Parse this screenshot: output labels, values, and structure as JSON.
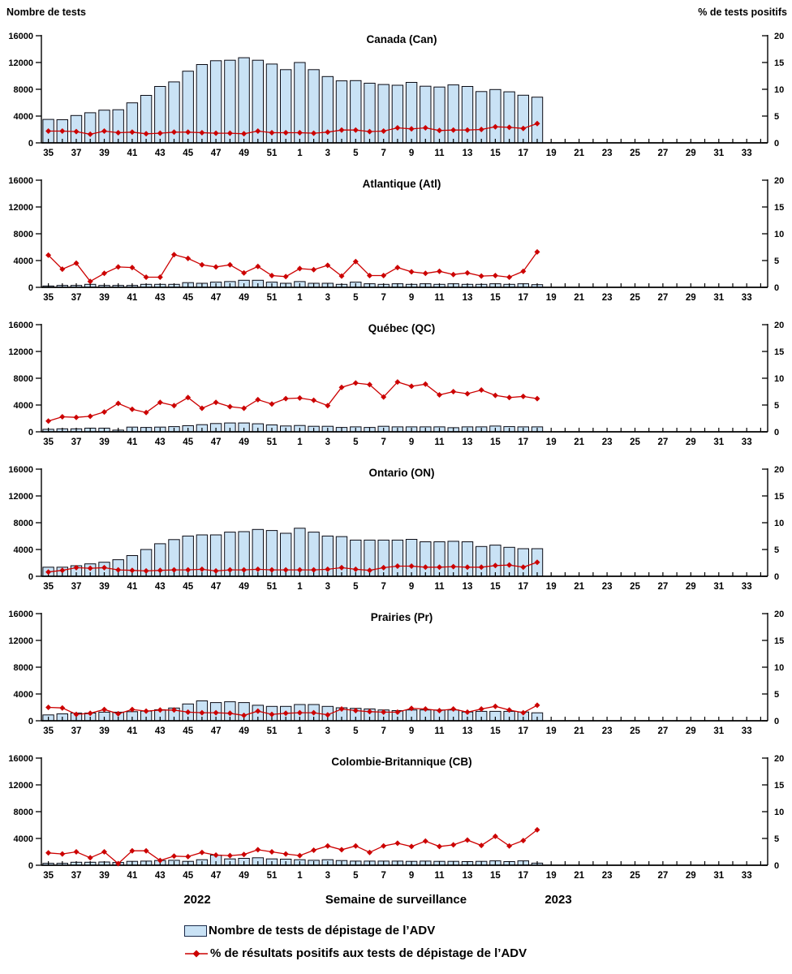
{
  "header": {
    "left_axis_title": "Nombre de tests",
    "right_axis_title": "% de tests positifs"
  },
  "footer": {
    "year_left": "2022",
    "xlabel": "Semaine de surveillance",
    "year_right": "2023"
  },
  "legend": {
    "bars_label": "Nombre de tests de dépistage de l’ADV",
    "line_label": "% de résultats positifs aux tests de dépistage de l’ADV"
  },
  "colors": {
    "bar_fill": "#C9E2F5",
    "bar_border": "#0b0b14",
    "line": "#CC0000",
    "axis": "#000000"
  },
  "chart_data": {
    "type": "bar+line",
    "categories": [
      "35",
      "36",
      "37",
      "38",
      "39",
      "40",
      "41",
      "42",
      "43",
      "44",
      "45",
      "46",
      "47",
      "48",
      "49",
      "50",
      "51",
      "52",
      "1",
      "2",
      "3",
      "4",
      "5",
      "6",
      "7",
      "8",
      "9",
      "10",
      "11",
      "12",
      "13",
      "14",
      "15",
      "16",
      "17",
      "18",
      "19",
      "20",
      "21",
      "22",
      "23",
      "24",
      "25",
      "26",
      "27",
      "28",
      "29",
      "30",
      "31",
      "32",
      "33",
      "34"
    ],
    "x_labeled_ticks": [
      "35",
      "37",
      "39",
      "41",
      "43",
      "45",
      "47",
      "49",
      "51",
      "1",
      "3",
      "5",
      "7",
      "9",
      "11",
      "13",
      "15",
      "17",
      "19",
      "21",
      "23",
      "25",
      "27",
      "29",
      "31",
      "33"
    ],
    "ylim_left": [
      0,
      16000
    ],
    "ylim_right": [
      0,
      20
    ],
    "yticks_left": [
      0,
      4000,
      8000,
      12000,
      16000
    ],
    "yticks_right": [
      0,
      5,
      10,
      15,
      20
    ],
    "bars_series_name": "Nombre de tests de dépistage de l’ADV",
    "line_series_name": "% de résultats positifs aux tests de dépistage de l’ADV",
    "panels": [
      {
        "id": "can",
        "title": "Canada (Can)",
        "tests": [
          3500,
          3460,
          4080,
          4500,
          4880,
          4950,
          5980,
          7090,
          8420,
          9100,
          10700,
          11700,
          12270,
          12340,
          12720,
          12340,
          11770,
          10930,
          12000,
          10930,
          9900,
          9260,
          9300,
          8910,
          8720,
          8610,
          9030,
          8460,
          8340,
          8650,
          8420,
          7660,
          7960,
          7620,
          7120,
          6820
        ],
        "pct_positive": [
          2.2,
          2.2,
          2.1,
          1.6,
          2.2,
          1.9,
          2.0,
          1.7,
          1.8,
          2.0,
          2.0,
          1.9,
          1.8,
          1.8,
          1.7,
          2.2,
          1.9,
          1.9,
          1.9,
          1.8,
          2.0,
          2.4,
          2.4,
          2.1,
          2.2,
          2.8,
          2.6,
          2.8,
          2.3,
          2.4,
          2.4,
          2.5,
          3.0,
          2.9,
          2.7,
          3.6
        ]
      },
      {
        "id": "atl",
        "title": "Atlantique (Atl)",
        "tests": [
          210,
          290,
          290,
          450,
          290,
          290,
          290,
          450,
          450,
          450,
          700,
          610,
          780,
          860,
          1060,
          1060,
          780,
          610,
          860,
          610,
          610,
          450,
          780,
          530,
          450,
          530,
          450,
          530,
          450,
          530,
          450,
          450,
          530,
          450,
          530,
          400
        ],
        "pct_positive": [
          6.0,
          3.4,
          4.5,
          1.1,
          2.6,
          3.8,
          3.7,
          1.9,
          1.9,
          6.1,
          5.4,
          4.2,
          3.8,
          4.2,
          2.7,
          3.9,
          2.2,
          2.0,
          3.5,
          3.3,
          4.1,
          2.1,
          4.8,
          2.2,
          2.2,
          3.7,
          2.9,
          2.6,
          3.0,
          2.4,
          2.7,
          2.1,
          2.2,
          1.9,
          3.0,
          6.6
        ]
      },
      {
        "id": "qc",
        "title": "Québec (QC)",
        "tests": [
          370,
          450,
          450,
          540,
          540,
          250,
          700,
          660,
          700,
          780,
          910,
          1070,
          1240,
          1320,
          1320,
          1200,
          1030,
          870,
          950,
          830,
          830,
          660,
          740,
          660,
          820,
          740,
          740,
          740,
          740,
          620,
          740,
          740,
          860,
          780,
          740,
          740
        ],
        "pct_positive": [
          2.0,
          2.8,
          2.7,
          2.9,
          3.7,
          5.3,
          4.2,
          3.6,
          5.5,
          4.9,
          6.4,
          4.4,
          5.5,
          4.7,
          4.4,
          6.0,
          5.2,
          6.2,
          6.3,
          5.9,
          4.9,
          8.3,
          9.1,
          8.8,
          6.5,
          9.3,
          8.5,
          8.9,
          6.9,
          7.5,
          7.1,
          7.8,
          6.8,
          6.4,
          6.6,
          6.2
        ]
      },
      {
        "id": "on",
        "title": "Ontario (ON)",
        "tests": [
          1360,
          1360,
          1570,
          1850,
          2100,
          2470,
          3090,
          4000,
          4860,
          5480,
          6010,
          6180,
          6180,
          6590,
          6670,
          7000,
          6840,
          6430,
          7170,
          6590,
          6010,
          5930,
          5400,
          5400,
          5400,
          5400,
          5520,
          5150,
          5150,
          5230,
          5150,
          4450,
          4650,
          4330,
          4120,
          4120
        ],
        "pct_positive": [
          0.8,
          1.1,
          1.6,
          1.5,
          1.6,
          1.2,
          1.1,
          1.0,
          1.1,
          1.2,
          1.2,
          1.3,
          1.0,
          1.2,
          1.2,
          1.3,
          1.2,
          1.2,
          1.2,
          1.2,
          1.3,
          1.6,
          1.3,
          1.1,
          1.6,
          1.9,
          1.9,
          1.7,
          1.7,
          1.8,
          1.7,
          1.7,
          2.0,
          2.1,
          1.7,
          2.6
        ]
      },
      {
        "id": "pr",
        "title": "Prairies (Pr)",
        "tests": [
          870,
          1030,
          1150,
          1150,
          1280,
          1280,
          1360,
          1440,
          1650,
          1900,
          2510,
          2970,
          2720,
          2840,
          2720,
          2310,
          2140,
          2140,
          2430,
          2430,
          2140,
          1940,
          1850,
          1770,
          1610,
          1520,
          1610,
          1610,
          1610,
          1610,
          1310,
          1400,
          1400,
          1400,
          1310,
          1190
        ],
        "pct_positive": [
          2.5,
          2.4,
          1.2,
          1.4,
          2.1,
          1.3,
          2.1,
          1.8,
          2.0,
          2.0,
          1.6,
          1.5,
          1.5,
          1.4,
          1.0,
          1.8,
          1.2,
          1.4,
          1.5,
          1.5,
          1.1,
          2.2,
          1.9,
          1.7,
          1.6,
          1.6,
          2.3,
          2.2,
          1.9,
          2.2,
          1.6,
          2.2,
          2.7,
          2.0,
          1.5,
          2.9
        ]
      },
      {
        "id": "cb",
        "title": "Colombie-Britannique (CB)",
        "tests": [
          290,
          290,
          450,
          450,
          490,
          410,
          580,
          620,
          700,
          740,
          580,
          820,
          1520,
          950,
          1030,
          1110,
          950,
          910,
          820,
          740,
          820,
          700,
          620,
          620,
          620,
          620,
          580,
          620,
          580,
          580,
          540,
          580,
          660,
          540,
          660,
          310
        ],
        "pct_positive": [
          2.3,
          2.1,
          2.5,
          1.4,
          2.5,
          0.3,
          2.7,
          2.7,
          0.9,
          1.7,
          1.6,
          2.4,
          1.9,
          1.8,
          2.0,
          2.9,
          2.5,
          2.1,
          1.8,
          2.8,
          3.6,
          2.9,
          3.6,
          2.4,
          3.6,
          4.1,
          3.5,
          4.5,
          3.5,
          3.8,
          4.7,
          3.7,
          5.4,
          3.6,
          4.6,
          6.6
        ]
      }
    ]
  }
}
